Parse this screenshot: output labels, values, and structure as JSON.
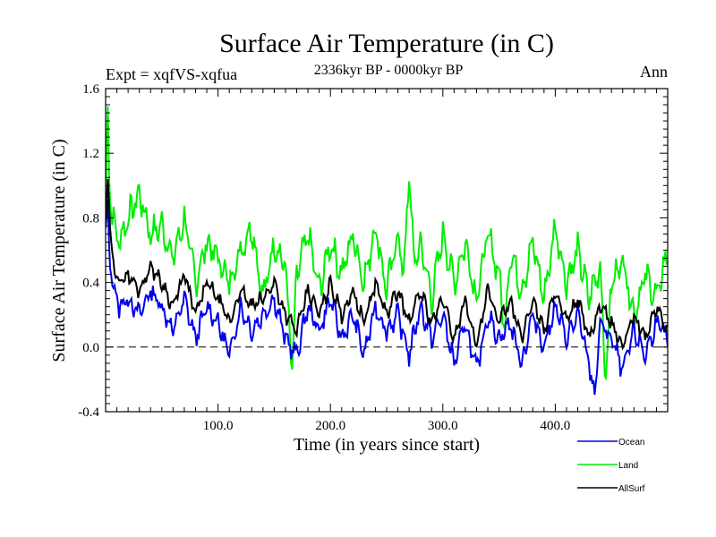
{
  "chart_data": {
    "type": "line",
    "title": "Surface Air Temperature (in C)",
    "subtitle": "2336kyr BP - 0000kyr BP",
    "experiment_label": "Expt = xqfVS-xqfua",
    "season_label": "Ann",
    "xlabel": "Time (in years since start)",
    "ylabel": "Surface Air Temperature (in C)",
    "xlim": [
      0,
      500
    ],
    "ylim": [
      -0.4,
      1.6
    ],
    "x_ticks": [
      100,
      200,
      300,
      400
    ],
    "x_tick_labels": [
      "100.0",
      "200.0",
      "300.0",
      "400.0"
    ],
    "y_ticks": [
      -0.4,
      0.0,
      0.4,
      0.8,
      1.2,
      1.6
    ],
    "y_tick_labels": [
      "-0.4",
      "0.0",
      "0.4",
      "0.8",
      "1.2",
      "1.6"
    ],
    "reference_line": {
      "y": 0.0,
      "style": "dashed"
    },
    "series": [
      {
        "name": "Land",
        "color": "#00ee00",
        "x": [
          0,
          2,
          3,
          5,
          8,
          12,
          20,
          30,
          40,
          50,
          60,
          70,
          80,
          90,
          100,
          110,
          120,
          130,
          140,
          150,
          160,
          166,
          170,
          180,
          190,
          200,
          210,
          220,
          230,
          240,
          250,
          260,
          265,
          270,
          275,
          280,
          290,
          300,
          310,
          320,
          330,
          340,
          350,
          355,
          360,
          370,
          380,
          390,
          400,
          410,
          420,
          430,
          440,
          445,
          450,
          460,
          470,
          480,
          490,
          500
        ],
        "values": [
          0.9,
          1.5,
          1.1,
          0.85,
          0.75,
          0.65,
          0.8,
          0.95,
          0.7,
          0.75,
          0.55,
          0.8,
          0.4,
          0.65,
          0.55,
          0.4,
          0.6,
          0.75,
          0.3,
          0.65,
          0.5,
          -0.15,
          0.45,
          0.7,
          0.35,
          0.65,
          0.45,
          0.7,
          0.4,
          0.75,
          0.35,
          0.7,
          0.45,
          1.05,
          0.5,
          0.65,
          0.3,
          0.7,
          0.4,
          0.65,
          0.3,
          0.7,
          0.45,
          0.1,
          0.6,
          0.35,
          0.65,
          0.3,
          0.75,
          0.4,
          0.6,
          0.3,
          0.5,
          -0.2,
          0.4,
          0.55,
          0.2,
          0.45,
          0.3,
          0.6
        ]
      },
      {
        "name": "Ocean",
        "color": "#0000ee",
        "x": [
          0,
          2,
          3,
          5,
          8,
          12,
          20,
          30,
          40,
          50,
          60,
          70,
          80,
          90,
          100,
          110,
          120,
          130,
          140,
          150,
          160,
          170,
          180,
          190,
          200,
          210,
          220,
          230,
          240,
          250,
          260,
          270,
          280,
          290,
          300,
          310,
          320,
          330,
          340,
          350,
          360,
          370,
          380,
          390,
          400,
          410,
          420,
          430,
          435,
          440,
          450,
          460,
          470,
          480,
          490,
          500
        ],
        "values": [
          0.7,
          0.85,
          0.65,
          0.45,
          0.35,
          0.25,
          0.3,
          0.2,
          0.35,
          0.25,
          0.1,
          0.3,
          0.05,
          0.25,
          0.15,
          -0.05,
          0.25,
          0.1,
          0.2,
          0.3,
          0.05,
          -0.05,
          0.25,
          0.1,
          0.3,
          0.05,
          0.2,
          -0.05,
          0.25,
          0.1,
          0.2,
          -0.05,
          0.25,
          0.05,
          0.2,
          -0.1,
          0.15,
          -0.15,
          0.2,
          0.05,
          0.15,
          -0.1,
          0.2,
          0.0,
          0.25,
          0.05,
          0.2,
          -0.1,
          -0.3,
          0.15,
          0.05,
          -0.15,
          0.1,
          -0.05,
          0.15,
          0.05
        ]
      },
      {
        "name": "AllSurf",
        "color": "#000000",
        "x": [
          0,
          2,
          3,
          5,
          8,
          12,
          20,
          30,
          40,
          50,
          60,
          70,
          80,
          90,
          100,
          110,
          120,
          130,
          140,
          150,
          160,
          170,
          180,
          190,
          200,
          210,
          220,
          230,
          240,
          250,
          260,
          270,
          280,
          290,
          300,
          310,
          320,
          330,
          340,
          350,
          360,
          370,
          380,
          390,
          400,
          410,
          420,
          430,
          440,
          450,
          460,
          470,
          480,
          490,
          500
        ],
        "values": [
          0.8,
          1.05,
          0.85,
          0.6,
          0.5,
          0.4,
          0.45,
          0.35,
          0.5,
          0.4,
          0.25,
          0.45,
          0.2,
          0.4,
          0.3,
          0.15,
          0.35,
          0.25,
          0.3,
          0.4,
          0.2,
          0.1,
          0.35,
          0.2,
          0.4,
          0.2,
          0.35,
          0.15,
          0.4,
          0.2,
          0.35,
          0.15,
          0.35,
          0.15,
          0.3,
          0.05,
          0.3,
          0.0,
          0.35,
          0.15,
          0.3,
          0.05,
          0.3,
          0.1,
          0.35,
          0.15,
          0.3,
          0.05,
          0.25,
          0.15,
          0.0,
          0.2,
          0.05,
          0.25,
          0.1
        ]
      }
    ],
    "legend": {
      "position": "bottom-right",
      "entries": [
        "Ocean",
        "Land",
        "AllSurf"
      ]
    }
  }
}
